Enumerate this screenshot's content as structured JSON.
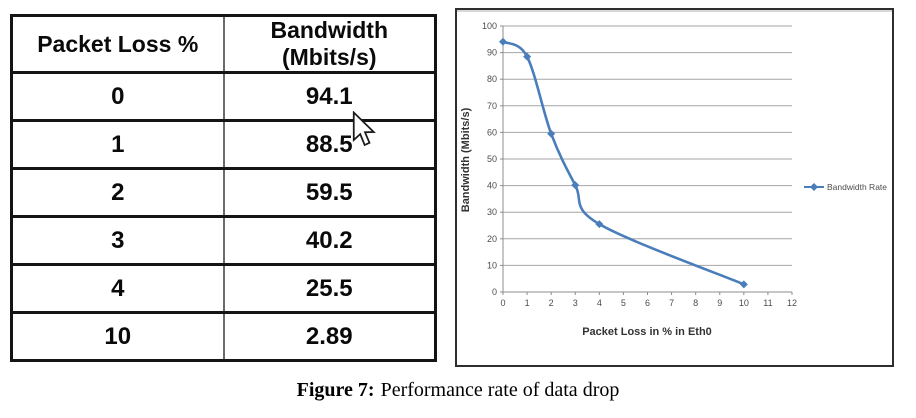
{
  "table": {
    "headers": [
      "Packet Loss %",
      "Bandwidth (Mbits/s)"
    ],
    "rows": [
      [
        "0",
        "94.1"
      ],
      [
        "1",
        "88.5"
      ],
      [
        "2",
        "59.5"
      ],
      [
        "3",
        "40.2"
      ],
      [
        "4",
        "25.5"
      ],
      [
        "10",
        "2.89"
      ]
    ]
  },
  "chart_data": {
    "type": "line",
    "title": "",
    "x": [
      0,
      1,
      2,
      3,
      4,
      10
    ],
    "series": [
      {
        "name": "Bandwidth Rate",
        "values": [
          94.1,
          88.5,
          59.5,
          40.2,
          25.5,
          2.89
        ]
      }
    ],
    "xlabel": "Packet Loss in % in Eth0",
    "ylabel": "Bandwidth (Mbits/s)",
    "xlim": [
      0,
      12
    ],
    "ylim": [
      0,
      100
    ],
    "x_ticks": [
      0,
      1,
      2,
      3,
      4,
      5,
      6,
      7,
      8,
      9,
      10,
      11,
      12
    ],
    "y_ticks": [
      0,
      10,
      20,
      30,
      40,
      50,
      60,
      70,
      80,
      90,
      100
    ],
    "grid": "horizontal",
    "legend_position": "right",
    "line_color": "#4A7EBB",
    "grid_color": "#A6A6A6",
    "axis_color": "#8C8C8C",
    "marker": "diamond"
  },
  "caption": {
    "label": "Figure 7:",
    "text": "Performance rate of data drop"
  },
  "icons": {
    "cursor_icon": "mouse-pointer-arrow"
  }
}
